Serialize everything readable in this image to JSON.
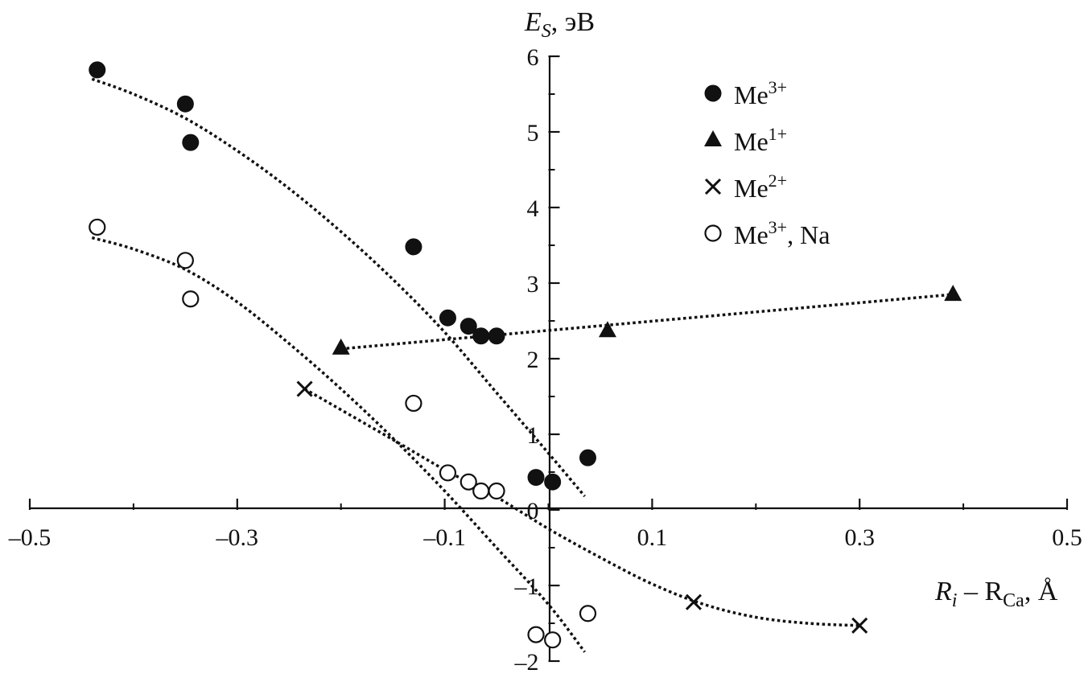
{
  "chart_data": {
    "type": "scatter",
    "title": "",
    "xlabel": {
      "main": "R",
      "sub1": "i",
      "mid": " – R",
      "sub2": "Ca",
      "unit": ", Å"
    },
    "ylabel": {
      "main": "E",
      "sub": "S",
      "unit": ", эВ"
    },
    "xlim": [
      -0.5,
      0.5
    ],
    "ylim": [
      -2,
      6
    ],
    "x_ticks": [
      -0.5,
      -0.3,
      -0.1,
      0.1,
      0.3,
      0.5
    ],
    "x_tick_labels": [
      "–0.5",
      "–0.3",
      "–0.1",
      "0.1",
      "0.3",
      "0.5"
    ],
    "x_minor_ticks": [
      -0.4,
      -0.2,
      0.0,
      0.2,
      0.4
    ],
    "y_ticks": [
      -2,
      -1,
      0,
      1,
      2,
      3,
      4,
      5,
      6
    ],
    "y_tick_labels": [
      "–2",
      "–1",
      "0",
      "1",
      "2",
      "3",
      "4",
      "5",
      "6"
    ],
    "grid": false,
    "legend_position": "top-right",
    "series": [
      {
        "name": "Me",
        "sup": "3+",
        "suffix": "",
        "marker": "filled-circle",
        "x": [
          -0.435,
          -0.35,
          -0.345,
          -0.13,
          -0.097,
          -0.077,
          -0.065,
          -0.05,
          -0.012,
          0.004,
          0.038
        ],
        "y": [
          5.82,
          5.37,
          4.86,
          3.48,
          2.54,
          2.43,
          2.3,
          2.3,
          0.43,
          0.37,
          0.69
        ],
        "trend": [
          [
            -0.44,
            5.7
          ],
          [
            -0.4,
            5.5
          ],
          [
            -0.35,
            5.18
          ],
          [
            -0.3,
            4.75
          ],
          [
            -0.25,
            4.25
          ],
          [
            -0.2,
            3.68
          ],
          [
            -0.15,
            3.05
          ],
          [
            -0.1,
            2.35
          ],
          [
            -0.05,
            1.55
          ],
          [
            0.0,
            0.75
          ],
          [
            0.035,
            0.18
          ]
        ]
      },
      {
        "name": "Me",
        "sup": "1+",
        "suffix": "",
        "marker": "filled-triangle",
        "x": [
          -0.2,
          0.057,
          0.39
        ],
        "y": [
          2.14,
          2.37,
          2.85
        ],
        "trend": [
          [
            -0.2,
            2.13
          ],
          [
            0.39,
            2.85
          ]
        ]
      },
      {
        "name": "Me",
        "sup": "2+",
        "suffix": "",
        "marker": "cross",
        "x": [
          -0.235,
          0.14,
          0.3
        ],
        "y": [
          1.6,
          -1.22,
          -1.53
        ],
        "trend": [
          [
            -0.235,
            1.6
          ],
          [
            -0.15,
            0.93
          ],
          [
            -0.1,
            0.53
          ],
          [
            -0.05,
            0.17
          ],
          [
            0.0,
            -0.25
          ],
          [
            0.05,
            -0.63
          ],
          [
            0.1,
            -0.98
          ],
          [
            0.15,
            -1.25
          ],
          [
            0.2,
            -1.42
          ],
          [
            0.25,
            -1.5
          ],
          [
            0.3,
            -1.53
          ]
        ]
      },
      {
        "name": "Me",
        "sup": "3+",
        "suffix": ", Na",
        "marker": "open-circle",
        "x": [
          -0.435,
          -0.35,
          -0.345,
          -0.13,
          -0.097,
          -0.077,
          -0.065,
          -0.05,
          -0.012,
          0.004,
          0.038
        ],
        "y": [
          3.74,
          3.3,
          2.79,
          1.41,
          0.49,
          0.37,
          0.25,
          0.25,
          -1.65,
          -1.72,
          -1.37
        ],
        "trend": [
          [
            -0.44,
            3.6
          ],
          [
            -0.4,
            3.45
          ],
          [
            -0.35,
            3.18
          ],
          [
            -0.3,
            2.75
          ],
          [
            -0.25,
            2.2
          ],
          [
            -0.2,
            1.6
          ],
          [
            -0.15,
            0.95
          ],
          [
            -0.1,
            0.25
          ],
          [
            -0.05,
            -0.5
          ],
          [
            0.0,
            -1.25
          ],
          [
            0.035,
            -1.88
          ]
        ]
      }
    ]
  }
}
